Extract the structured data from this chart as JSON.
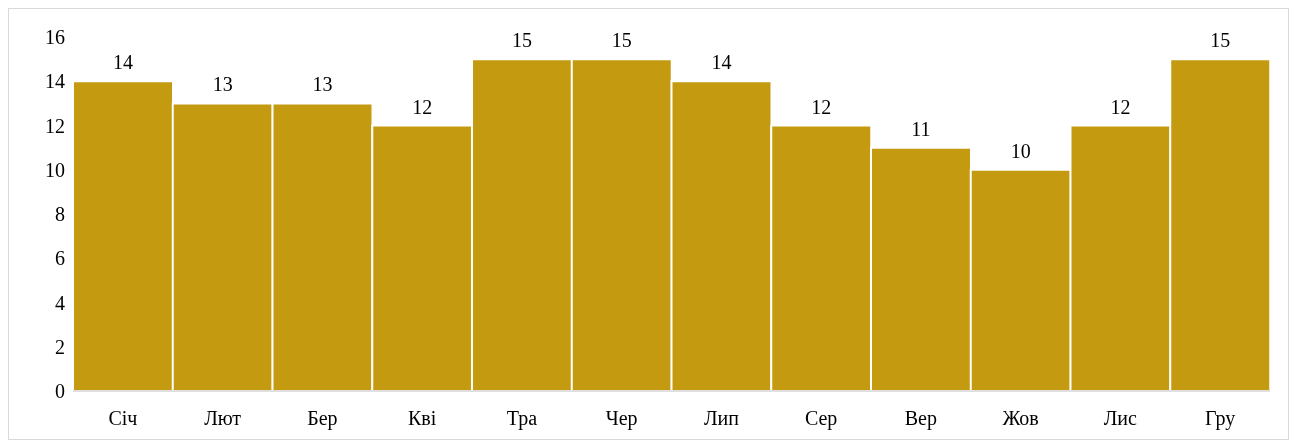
{
  "chart_data": {
    "type": "bar",
    "categories": [
      "Січ",
      "Лют",
      "Бер",
      "Кві",
      "Тра",
      "Чер",
      "Лип",
      "Сер",
      "Вер",
      "Жов",
      "Лис",
      "Гру"
    ],
    "values": [
      14,
      13,
      13,
      12,
      15,
      15,
      14,
      12,
      11,
      10,
      12,
      15
    ],
    "color": "#c49a10",
    "ylim": [
      0,
      16
    ],
    "yticks": [
      0,
      2,
      4,
      6,
      8,
      10,
      12,
      14,
      16
    ],
    "grid": false,
    "data_labels": true
  }
}
